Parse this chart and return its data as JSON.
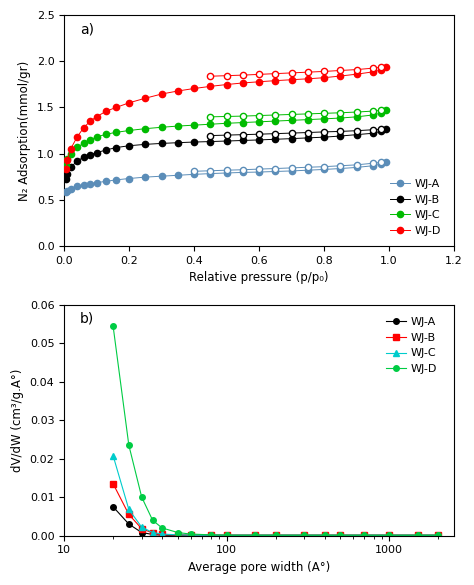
{
  "panel_a": {
    "title": "a)",
    "xlabel": "Relative pressure (p/p₀)",
    "ylabel": "N₂ Adsorption(mmol/gr)",
    "xlim": [
      0,
      1.2
    ],
    "ylim": [
      0,
      2.5
    ],
    "xticks": [
      0,
      0.2,
      0.4,
      0.6,
      0.8,
      1.0,
      1.2
    ],
    "yticks": [
      0,
      0.5,
      1.0,
      1.5,
      2.0,
      2.5
    ],
    "series": {
      "WJ-A": {
        "color": "#5B8DB8",
        "adsorption_x": [
          0.005,
          0.01,
          0.02,
          0.04,
          0.06,
          0.08,
          0.1,
          0.13,
          0.16,
          0.2,
          0.25,
          0.3,
          0.35,
          0.4,
          0.45,
          0.5,
          0.55,
          0.6,
          0.65,
          0.7,
          0.75,
          0.8,
          0.85,
          0.9,
          0.95,
          0.975,
          0.99
        ],
        "adsorption_y": [
          0.585,
          0.6,
          0.62,
          0.645,
          0.66,
          0.675,
          0.685,
          0.7,
          0.715,
          0.73,
          0.745,
          0.755,
          0.765,
          0.775,
          0.783,
          0.79,
          0.796,
          0.8,
          0.806,
          0.812,
          0.82,
          0.828,
          0.838,
          0.85,
          0.868,
          0.885,
          0.905
        ],
        "desorption_x": [
          0.975,
          0.95,
          0.9,
          0.85,
          0.8,
          0.75,
          0.7,
          0.65,
          0.6,
          0.55,
          0.5,
          0.45,
          0.4
        ],
        "desorption_y": [
          0.905,
          0.895,
          0.878,
          0.868,
          0.858,
          0.852,
          0.845,
          0.838,
          0.832,
          0.825,
          0.82,
          0.814,
          0.808
        ]
      },
      "WJ-B": {
        "color": "#000000",
        "adsorption_x": [
          0.005,
          0.01,
          0.02,
          0.04,
          0.06,
          0.08,
          0.1,
          0.13,
          0.16,
          0.2,
          0.25,
          0.3,
          0.35,
          0.4,
          0.45,
          0.5,
          0.55,
          0.6,
          0.65,
          0.7,
          0.75,
          0.8,
          0.85,
          0.9,
          0.95,
          0.975,
          0.99
        ],
        "adsorption_y": [
          0.72,
          0.78,
          0.85,
          0.92,
          0.96,
          0.99,
          1.01,
          1.04,
          1.065,
          1.085,
          1.1,
          1.11,
          1.118,
          1.125,
          1.13,
          1.136,
          1.142,
          1.148,
          1.155,
          1.162,
          1.17,
          1.178,
          1.19,
          1.205,
          1.22,
          1.24,
          1.265
        ],
        "desorption_x": [
          0.975,
          0.95,
          0.9,
          0.85,
          0.8,
          0.75,
          0.7,
          0.65,
          0.6,
          0.55,
          0.5,
          0.45
        ],
        "desorption_y": [
          1.265,
          1.258,
          1.248,
          1.24,
          1.235,
          1.228,
          1.222,
          1.216,
          1.21,
          1.205,
          1.2,
          1.195
        ]
      },
      "WJ-C": {
        "color": "#00BB00",
        "adsorption_x": [
          0.005,
          0.01,
          0.02,
          0.04,
          0.06,
          0.08,
          0.1,
          0.13,
          0.16,
          0.2,
          0.25,
          0.3,
          0.35,
          0.4,
          0.45,
          0.5,
          0.55,
          0.6,
          0.65,
          0.7,
          0.75,
          0.8,
          0.85,
          0.9,
          0.95,
          0.975,
          0.99
        ],
        "adsorption_y": [
          0.88,
          0.94,
          1.0,
          1.07,
          1.11,
          1.15,
          1.18,
          1.21,
          1.23,
          1.25,
          1.27,
          1.285,
          1.298,
          1.308,
          1.318,
          1.328,
          1.336,
          1.344,
          1.352,
          1.36,
          1.368,
          1.376,
          1.385,
          1.398,
          1.418,
          1.438,
          1.468
        ],
        "desorption_x": [
          0.975,
          0.95,
          0.9,
          0.85,
          0.8,
          0.75,
          0.7,
          0.65,
          0.6,
          0.55,
          0.5,
          0.45
        ],
        "desorption_y": [
          1.468,
          1.46,
          1.45,
          1.442,
          1.436,
          1.43,
          1.424,
          1.418,
          1.412,
          1.406,
          1.402,
          1.398
        ]
      },
      "WJ-D": {
        "color": "#FF0000",
        "adsorption_x": [
          0.005,
          0.01,
          0.02,
          0.04,
          0.06,
          0.08,
          0.1,
          0.13,
          0.16,
          0.2,
          0.25,
          0.3,
          0.35,
          0.4,
          0.45,
          0.5,
          0.55,
          0.6,
          0.65,
          0.7,
          0.75,
          0.8,
          0.85,
          0.9,
          0.95,
          0.975,
          0.99
        ],
        "adsorption_y": [
          0.83,
          0.93,
          1.05,
          1.18,
          1.28,
          1.35,
          1.4,
          1.46,
          1.5,
          1.55,
          1.6,
          1.645,
          1.678,
          1.705,
          1.728,
          1.748,
          1.765,
          1.778,
          1.79,
          1.8,
          1.81,
          1.822,
          1.84,
          1.86,
          1.885,
          1.905,
          1.935
        ],
        "desorption_x": [
          0.975,
          0.95,
          0.9,
          0.85,
          0.8,
          0.75,
          0.7,
          0.65,
          0.6,
          0.55,
          0.5,
          0.45
        ],
        "desorption_y": [
          1.935,
          1.925,
          1.91,
          1.9,
          1.89,
          1.882,
          1.874,
          1.866,
          1.858,
          1.85,
          1.844,
          1.838
        ]
      }
    }
  },
  "panel_b": {
    "title": "b)",
    "xlabel": "Average pore width (A°)",
    "ylabel": "dV/dW (cm³/g.A°)",
    "xlim": [
      10,
      2500
    ],
    "ylim": [
      0,
      0.06
    ],
    "yticks": [
      0,
      0.01,
      0.02,
      0.03,
      0.04,
      0.05,
      0.06
    ],
    "series": {
      "WJ-A": {
        "color": "#000000",
        "marker": "o",
        "x": [
          20,
          25,
          30,
          35,
          40,
          50,
          60,
          80,
          100,
          150,
          200,
          300,
          400,
          500,
          700,
          1000,
          1500,
          2000
        ],
        "y": [
          0.0075,
          0.003,
          0.0008,
          0.0003,
          0.0001,
          0.0001,
          0.0001,
          0.0001,
          0.0001,
          0.0001,
          0.0001,
          0.0001,
          0.0001,
          0.0001,
          0.0001,
          0.0001,
          0.0001,
          0.0001
        ]
      },
      "WJ-B": {
        "color": "#FF0000",
        "marker": "s",
        "x": [
          20,
          25,
          30,
          35,
          40,
          50,
          60,
          80,
          100,
          150,
          200,
          300,
          400,
          500,
          700,
          1000,
          1500,
          2000
        ],
        "y": [
          0.0135,
          0.0055,
          0.0018,
          0.0007,
          0.0003,
          0.0002,
          0.0001,
          0.0001,
          0.0001,
          0.0001,
          0.0001,
          0.0001,
          0.0001,
          0.0001,
          0.0001,
          0.0001,
          0.0001,
          0.0001
        ]
      },
      "WJ-C": {
        "color": "#00CCCC",
        "marker": "^",
        "x": [
          20,
          25,
          30,
          35,
          40,
          50,
          60,
          80,
          100,
          150,
          200,
          300,
          400,
          500,
          700,
          1000,
          1500,
          2000
        ],
        "y": [
          0.0208,
          0.0068,
          0.0022,
          0.0008,
          0.0004,
          0.0002,
          0.0001,
          0.0001,
          0.0001,
          0.0001,
          0.0001,
          0.0001,
          0.0001,
          0.0001,
          0.0001,
          0.0001,
          0.0001,
          0.0001
        ]
      },
      "WJ-D": {
        "color": "#00CC44",
        "marker": "o",
        "x": [
          20,
          25,
          30,
          35,
          40,
          50,
          60,
          80,
          100,
          150,
          200,
          300,
          400,
          500,
          700,
          1000,
          1500,
          2000
        ],
        "y": [
          0.0545,
          0.0235,
          0.01,
          0.004,
          0.002,
          0.0008,
          0.0004,
          0.0002,
          0.0001,
          0.0001,
          0.0001,
          0.0001,
          0.0001,
          0.0001,
          0.0001,
          0.0001,
          0.0001,
          0.0001
        ]
      }
    }
  }
}
